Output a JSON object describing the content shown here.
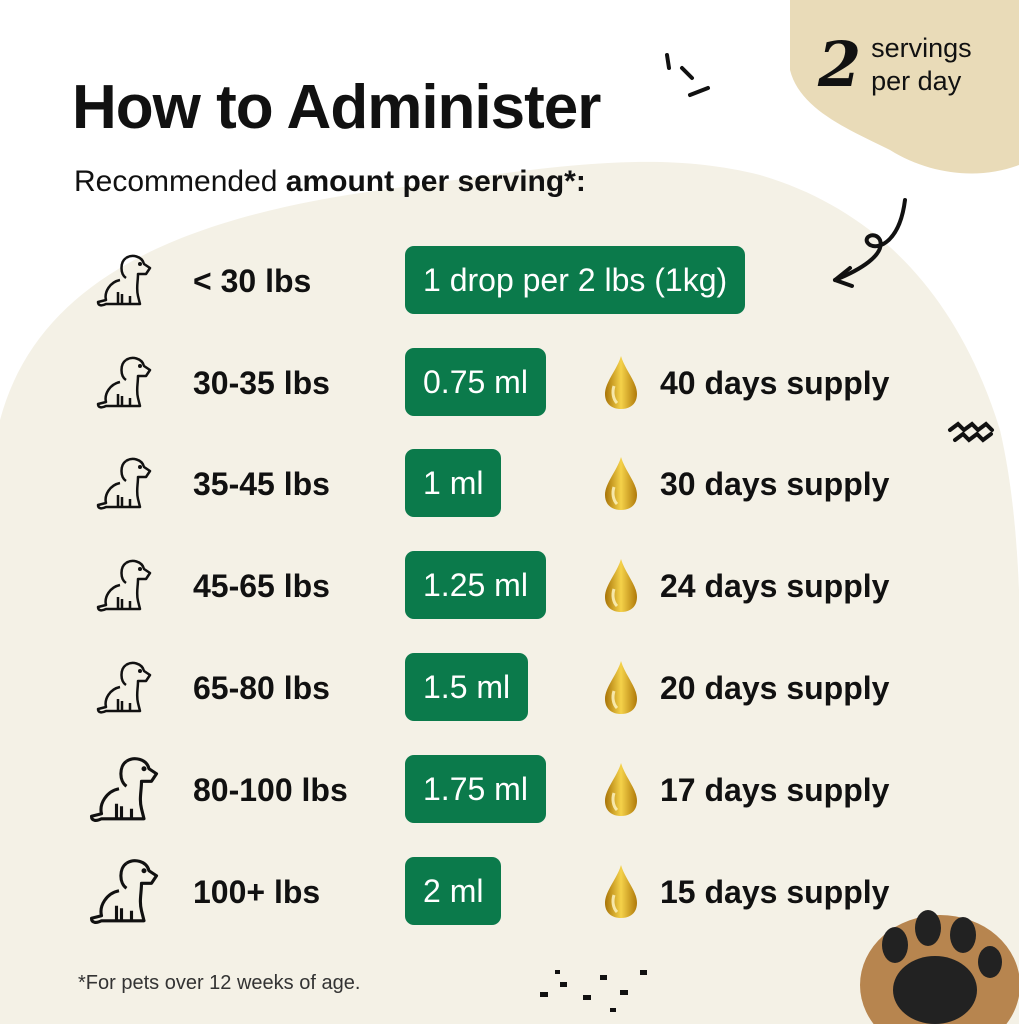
{
  "header": {
    "title": "How to Administer",
    "subtitle_prefix": "Recommended ",
    "subtitle_bold": "amount per serving*:"
  },
  "badge": {
    "number": "2",
    "line1": "servings",
    "line2": "per day"
  },
  "colors": {
    "pill": "#0b7a4b",
    "blob": "#f4f1e6",
    "badge_bg": "#e9dbb8",
    "drop": "#e0a91c"
  },
  "rows": [
    {
      "weight": "< 30 lbs",
      "amount": "1 drop per 2 lbs (1kg)",
      "supply": ""
    },
    {
      "weight": "30-35 lbs",
      "amount": "0.75 ml",
      "supply": "40 days supply"
    },
    {
      "weight": "35-45 lbs",
      "amount": "1 ml",
      "supply": "30 days supply"
    },
    {
      "weight": "45-65 lbs",
      "amount": "1.25 ml",
      "supply": "24 days supply"
    },
    {
      "weight": "65-80 lbs",
      "amount": "1.5 ml",
      "supply": "20 days supply"
    },
    {
      "weight": "80-100 lbs",
      "amount": "1.75 ml",
      "supply": "17 days supply"
    },
    {
      "weight": "100+ lbs",
      "amount": "2 ml",
      "supply": "15 days supply"
    }
  ],
  "footnote": "*For pets over 12 weeks of age."
}
